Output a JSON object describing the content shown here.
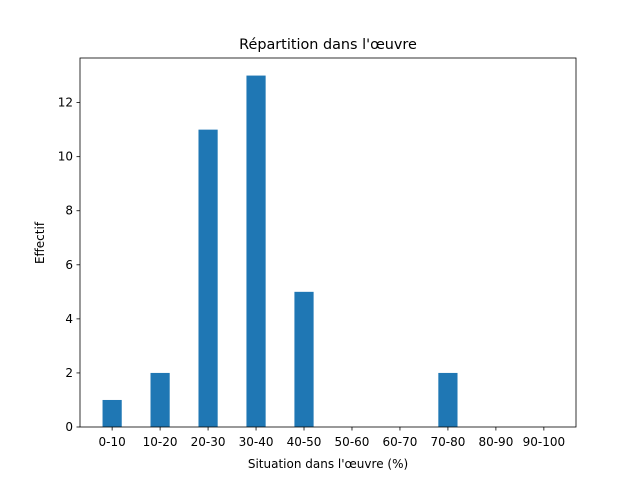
{
  "chart_data": {
    "type": "bar",
    "title": "Répartition dans l'œuvre",
    "xlabel": "Situation dans l'œuvre (%)",
    "ylabel": "Effectif",
    "categories": [
      "0-10",
      "10-20",
      "20-30",
      "30-40",
      "40-50",
      "50-60",
      "60-70",
      "70-80",
      "80-90",
      "90-100"
    ],
    "values": [
      1,
      2,
      11,
      13,
      5,
      0,
      0,
      2,
      0,
      0
    ],
    "color": "#1f77b4",
    "ylim": [
      0,
      13.65
    ],
    "yticks": [
      0,
      2,
      4,
      6,
      8,
      10,
      12
    ],
    "grid": false
  }
}
